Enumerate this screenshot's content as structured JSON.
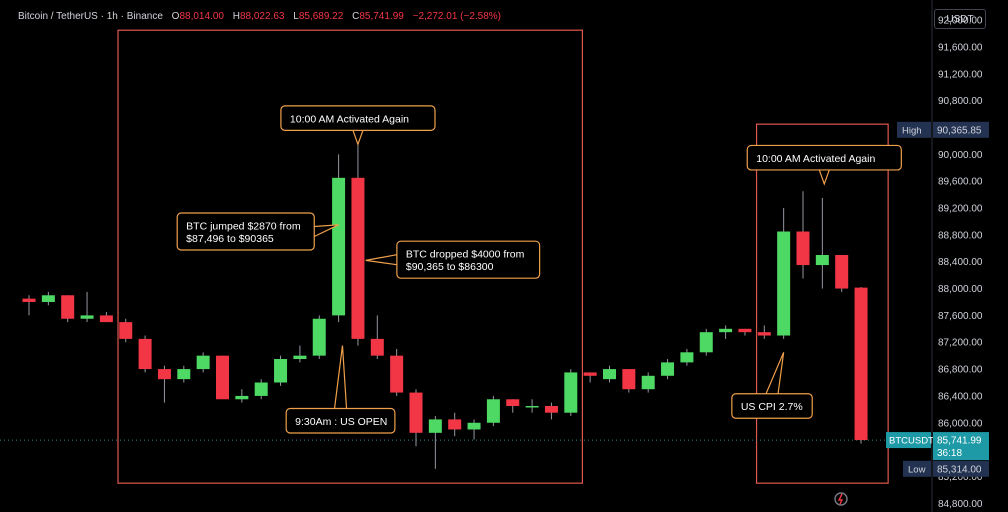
{
  "header": {
    "symbol": "Bitcoin / TetherUS · 1h · Binance",
    "o_label": "O",
    "o_value": "88,014.00",
    "h_label": "H",
    "h_value": "88,022.63",
    "l_label": "L",
    "l_value": "85,689.22",
    "c_label": "C",
    "c_value": "85,741.99",
    "change": "−2,272.01 (−2.58%)",
    "currency": "USDT"
  },
  "colors": {
    "up": "#4dd964",
    "down": "#f23645",
    "annotation_border": "#f0a04b",
    "box_border": "#e0594e",
    "high_tag": "#233250",
    "last_price_tag": "#1e9aa6"
  },
  "chart_data": {
    "type": "candlestick",
    "title": "Bitcoin / TetherUS · 1h · Binance",
    "ylim": [
      84700,
      92300
    ],
    "y_ticks": [
      "92,000.00",
      "91,600.00",
      "91,200.00",
      "90,800.00",
      "90,400.00",
      "90,000.00",
      "89,600.00",
      "89,200.00",
      "88,800.00",
      "88,400.00",
      "88,000.00",
      "87,600.00",
      "87,200.00",
      "86,800.00",
      "86,400.00",
      "86,000.00",
      "85,600.00",
      "85,200.00",
      "84,800.00"
    ],
    "price_tags": [
      {
        "label": "High",
        "value": "90,365.85"
      },
      {
        "label": "BTCUSDT",
        "value": "85,741.99",
        "countdown": "36:18"
      },
      {
        "label": "Low",
        "value": "85,314.00"
      }
    ],
    "candles": [
      {
        "o": 87850,
        "h": 87900,
        "l": 87600,
        "c": 87800
      },
      {
        "o": 87800,
        "h": 87950,
        "l": 87750,
        "c": 87900
      },
      {
        "o": 87900,
        "h": 87900,
        "l": 87500,
        "c": 87550
      },
      {
        "o": 87550,
        "h": 87950,
        "l": 87500,
        "c": 87600
      },
      {
        "o": 87600,
        "h": 87650,
        "l": 87500,
        "c": 87500
      },
      {
        "o": 87500,
        "h": 87550,
        "l": 87200,
        "c": 87250
      },
      {
        "o": 87250,
        "h": 87300,
        "l": 86750,
        "c": 86800
      },
      {
        "o": 86800,
        "h": 86850,
        "l": 86300,
        "c": 86650
      },
      {
        "o": 86650,
        "h": 86850,
        "l": 86600,
        "c": 86800
      },
      {
        "o": 86800,
        "h": 87050,
        "l": 86750,
        "c": 87000
      },
      {
        "o": 87000,
        "h": 87000,
        "l": 86400,
        "c": 86350
      },
      {
        "o": 86350,
        "h": 86500,
        "l": 86300,
        "c": 86400
      },
      {
        "o": 86400,
        "h": 86650,
        "l": 86350,
        "c": 86600
      },
      {
        "o": 86600,
        "h": 87000,
        "l": 86550,
        "c": 86950
      },
      {
        "o": 86950,
        "h": 87150,
        "l": 86900,
        "c": 87000
      },
      {
        "o": 87000,
        "h": 87600,
        "l": 86950,
        "c": 87550
      },
      {
        "o": 87600,
        "h": 90000,
        "l": 87500,
        "c": 89650
      },
      {
        "o": 89650,
        "h": 90365,
        "l": 87150,
        "c": 87250
      },
      {
        "o": 87250,
        "h": 87600,
        "l": 86950,
        "c": 87000
      },
      {
        "o": 87000,
        "h": 87100,
        "l": 86400,
        "c": 86450
      },
      {
        "o": 86450,
        "h": 86500,
        "l": 85650,
        "c": 85850
      },
      {
        "o": 85850,
        "h": 86100,
        "l": 85314,
        "c": 86050
      },
      {
        "o": 86050,
        "h": 86150,
        "l": 85800,
        "c": 85900
      },
      {
        "o": 85900,
        "h": 86050,
        "l": 85750,
        "c": 86000
      },
      {
        "o": 86000,
        "h": 86400,
        "l": 85950,
        "c": 86350
      },
      {
        "o": 86350,
        "h": 86350,
        "l": 86150,
        "c": 86250
      },
      {
        "o": 86250,
        "h": 86350,
        "l": 86150,
        "c": 86250
      },
      {
        "o": 86250,
        "h": 86300,
        "l": 86050,
        "c": 86150
      },
      {
        "o": 86150,
        "h": 86800,
        "l": 86100,
        "c": 86750
      },
      {
        "o": 86750,
        "h": 86750,
        "l": 86600,
        "c": 86700
      },
      {
        "o": 86650,
        "h": 86850,
        "l": 86600,
        "c": 86800
      },
      {
        "o": 86800,
        "h": 86800,
        "l": 86450,
        "c": 86500
      },
      {
        "o": 86500,
        "h": 86750,
        "l": 86450,
        "c": 86700
      },
      {
        "o": 86700,
        "h": 86950,
        "l": 86650,
        "c": 86900
      },
      {
        "o": 86900,
        "h": 87100,
        "l": 86850,
        "c": 87050
      },
      {
        "o": 87050,
        "h": 87400,
        "l": 87000,
        "c": 87350
      },
      {
        "o": 87350,
        "h": 87450,
        "l": 87250,
        "c": 87400
      },
      {
        "o": 87400,
        "h": 87400,
        "l": 87300,
        "c": 87350
      },
      {
        "o": 87350,
        "h": 87450,
        "l": 87250,
        "c": 87300
      },
      {
        "o": 87300,
        "h": 89200,
        "l": 87250,
        "c": 88850
      },
      {
        "o": 88850,
        "h": 89450,
        "l": 88150,
        "c": 88350
      },
      {
        "o": 88350,
        "h": 89350,
        "l": 88000,
        "c": 88500
      },
      {
        "o": 88500,
        "h": 88500,
        "l": 87950,
        "c": 88000
      },
      {
        "o": 88014,
        "h": 88023,
        "l": 85689,
        "c": 85742
      }
    ],
    "highlight_boxes": [
      {
        "from_candle": 4.6,
        "to_candle": 28.6,
        "top": 91850,
        "bottom": 85100
      },
      {
        "from_candle": 37.6,
        "to_candle": 44.4,
        "top": 90450,
        "bottom": 85100
      }
    ],
    "annotations": [
      {
        "text": "10:00 AM Activated Again",
        "candle": 17,
        "price": 90540,
        "pointer": "down"
      },
      {
        "text": "BTC jumped $2870 from\n$87,496 to $90365",
        "candle": 11.2,
        "price": 88850,
        "pointer": "right",
        "target_candle": 16,
        "target_price": 88950
      },
      {
        "text": "BTC dropped $4000 from\n$90,365 to $86300",
        "candle": 22.7,
        "price": 88430,
        "pointer": "left",
        "target_candle": 17.4,
        "target_price": 88420
      },
      {
        "text": "9:30Am : US OPEN",
        "candle": 16.1,
        "price": 86030,
        "pointer": "up",
        "target_candle": 16.2,
        "target_price": 87150
      },
      {
        "text": "10:00 AM Activated Again",
        "candle": 41.1,
        "price": 89950,
        "pointer": "down"
      },
      {
        "text": "US CPI 2.7%",
        "candle": 38.4,
        "price": 86250,
        "pointer": "up",
        "target_candle": 39,
        "target_price": 87050
      }
    ]
  }
}
